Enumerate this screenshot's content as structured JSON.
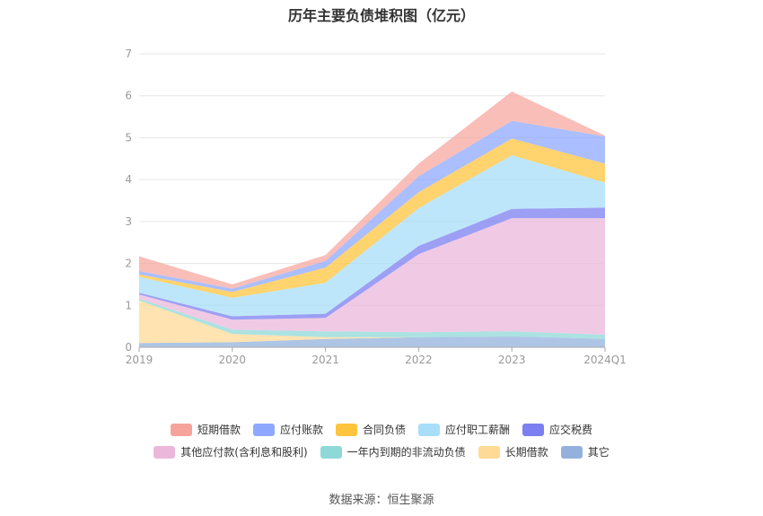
{
  "chart_data": {
    "type": "area",
    "stacked": true,
    "title": "历年主要负债堆积图（亿元）",
    "xlabel": "",
    "ylabel": "",
    "x": [
      "2019",
      "2020",
      "2021",
      "2022",
      "2023",
      "2024Q1"
    ],
    "ylim": [
      0,
      7
    ],
    "yticks": [
      0,
      1,
      2,
      3,
      4,
      5,
      6,
      7
    ],
    "grid": true,
    "legend_position": "bottom",
    "series": [
      {
        "name": "其它",
        "color": "#93b1dc",
        "values": [
          0.1,
          0.12,
          0.2,
          0.24,
          0.26,
          0.2
        ]
      },
      {
        "name": "长期借款",
        "color": "#ffd996",
        "values": [
          1.02,
          0.2,
          0.04,
          0.0,
          0.0,
          0.0
        ]
      },
      {
        "name": "一年内到期的非流动负债",
        "color": "#8fd8d8",
        "values": [
          0.04,
          0.1,
          0.14,
          0.12,
          0.12,
          0.1
        ]
      },
      {
        "name": "其他应付款(含利息和股利)",
        "color": "#ebb8dc",
        "values": [
          0.1,
          0.24,
          0.32,
          1.86,
          2.7,
          2.78
        ]
      },
      {
        "name": "应交税费",
        "color": "#7b7ff0",
        "values": [
          0.04,
          0.08,
          0.1,
          0.2,
          0.22,
          0.25
        ]
      },
      {
        "name": "应付职工薪酬",
        "color": "#a8def8",
        "values": [
          0.38,
          0.44,
          0.74,
          0.9,
          1.28,
          0.6
        ]
      },
      {
        "name": "合同负债",
        "color": "#ffc43d",
        "values": [
          0.06,
          0.14,
          0.36,
          0.38,
          0.4,
          0.45
        ]
      },
      {
        "name": "应付账款",
        "color": "#8fa8ff",
        "values": [
          0.08,
          0.08,
          0.16,
          0.38,
          0.42,
          0.65
        ]
      },
      {
        "name": "短期借款",
        "color": "#f7a8a0",
        "values": [
          0.35,
          0.1,
          0.14,
          0.3,
          0.7,
          0.02
        ]
      }
    ]
  },
  "legend_rows": [
    [
      {
        "name": "短期借款",
        "color": "#f5a39b"
      },
      {
        "name": "应付账款",
        "color": "#8fa8ff"
      },
      {
        "name": "合同负债",
        "color": "#ffc43d"
      },
      {
        "name": "应付职工薪酬",
        "color": "#a8def8"
      },
      {
        "name": "应交税费",
        "color": "#7b7ff0"
      }
    ],
    [
      {
        "name": "其他应付款(含利息和股利)",
        "color": "#ebb8dc"
      },
      {
        "name": "一年内到期的非流动负债",
        "color": "#8fd8d8"
      },
      {
        "name": "长期借款",
        "color": "#ffd996"
      },
      {
        "name": "其它",
        "color": "#93b1dc"
      }
    ]
  ],
  "source": "数据来源：恒生聚源"
}
